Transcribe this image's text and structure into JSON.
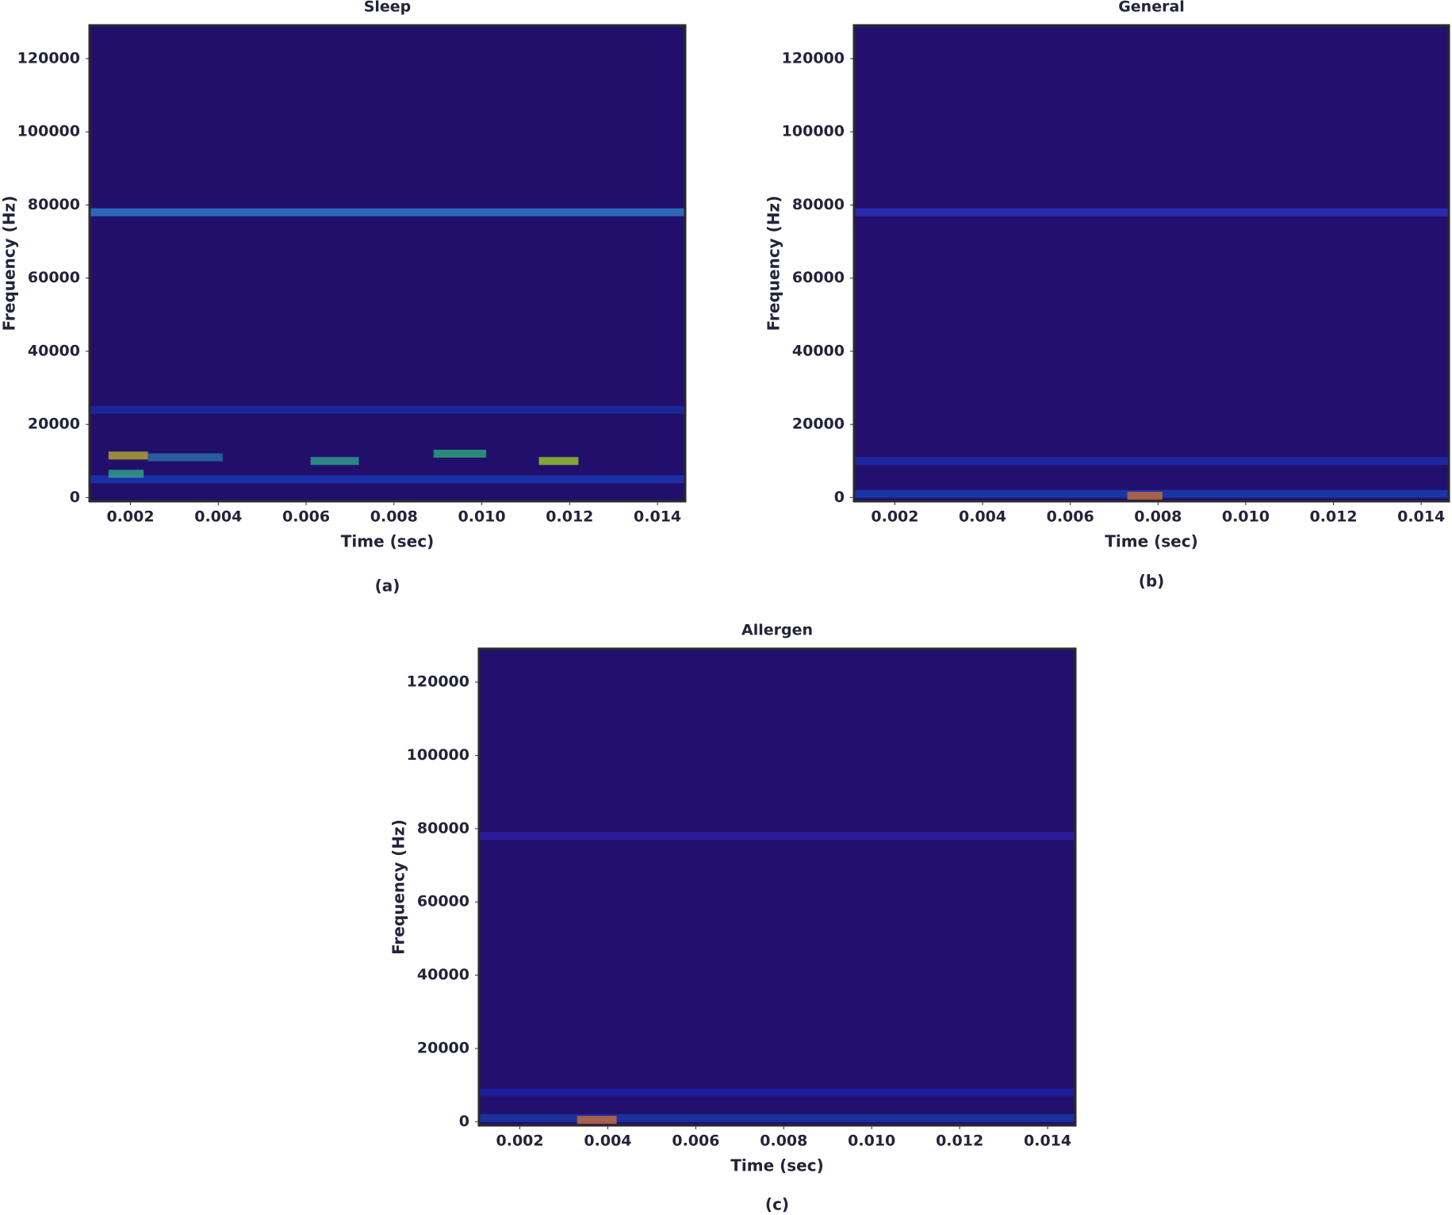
{
  "chart_data": [
    {
      "type": "spectrogram",
      "title": "Sleep",
      "caption": "(a)",
      "xlabel": "Time (sec)",
      "ylabel": "Frequency (Hz)",
      "background": "#220f6c",
      "xlim": [
        0.00107,
        0.01463
      ],
      "ylim": [
        -1000,
        129100
      ],
      "xticks": [
        0.002,
        0.004,
        0.006,
        0.008,
        {
          "value": 0.01,
          "label": "0.010"
        },
        0.012,
        0.014
      ],
      "yticks": [
        0,
        20000,
        40000,
        60000,
        80000,
        100000,
        120000
      ],
      "features": [
        {
          "t": [
            0.00107,
            0.01463
          ],
          "f": 78000,
          "color": "#2d78c8"
        },
        {
          "t": [
            0.00107,
            0.01463
          ],
          "f": 24000,
          "color": "#1a2aa0"
        },
        {
          "t": [
            0.00107,
            0.01463
          ],
          "f": 5000,
          "color": "#1a35b0"
        },
        {
          "t": [
            0.0015,
            0.0024
          ],
          "f": 11500,
          "color": "#b0a030"
        },
        {
          "t": [
            0.0024,
            0.0041
          ],
          "f": 11000,
          "color": "#2a6aa8"
        },
        {
          "t": [
            0.0015,
            0.0023
          ],
          "f": 6500,
          "color": "#2fa08a"
        },
        {
          "t": [
            0.0061,
            0.0072
          ],
          "f": 10000,
          "color": "#2f9a8a"
        },
        {
          "t": [
            0.0089,
            0.0101
          ],
          "f": 12000,
          "color": "#2aa07a"
        },
        {
          "t": [
            0.0113,
            0.0122
          ],
          "f": 10000,
          "color": "#90c030"
        }
      ]
    },
    {
      "type": "spectrogram",
      "title": "General",
      "caption": "(b)",
      "xlabel": "Time (sec)",
      "ylabel": "Frequency (Hz)",
      "background": "#230f6e",
      "xlim": [
        0.00107,
        0.01463
      ],
      "ylim": [
        -1000,
        129100
      ],
      "xticks": [
        0.002,
        0.004,
        0.006,
        0.008,
        {
          "value": 0.01,
          "label": "0.010"
        },
        0.012,
        0.014
      ],
      "yticks": [
        0,
        20000,
        40000,
        60000,
        80000,
        100000,
        120000
      ],
      "features": [
        {
          "t": [
            0.00107,
            0.01463
          ],
          "f": 78000,
          "color": "#2b2fb8"
        },
        {
          "t": [
            0.00107,
            0.01463
          ],
          "f": 10000,
          "color": "#1b2aa8"
        },
        {
          "t": [
            0.00107,
            0.01463
          ],
          "f": 1000,
          "color": "#1a3cb0"
        },
        {
          "t": [
            0.0073,
            0.0081
          ],
          "f": 500,
          "color": "#c06a40"
        }
      ]
    },
    {
      "type": "spectrogram",
      "title": "Allergen",
      "caption": "(c)",
      "xlabel": "Time (sec)",
      "ylabel": "Frequency (Hz)",
      "background": "#230f6e",
      "xlim": [
        0.00107,
        0.01463
      ],
      "ylim": [
        -1000,
        129100
      ],
      "xticks": [
        0.002,
        0.004,
        0.006,
        0.008,
        {
          "value": 0.01,
          "label": "0.010"
        },
        0.012,
        0.014
      ],
      "yticks": [
        0,
        20000,
        40000,
        60000,
        80000,
        100000,
        120000
      ],
      "features": [
        {
          "t": [
            0.00107,
            0.01463
          ],
          "f": 78000,
          "color": "#2a1fa0"
        },
        {
          "t": [
            0.00107,
            0.01463
          ],
          "f": 8000,
          "color": "#1c20a0"
        },
        {
          "t": [
            0.00107,
            0.01463
          ],
          "f": 1000,
          "color": "#1a35a8"
        },
        {
          "t": [
            0.0033,
            0.0042
          ],
          "f": 500,
          "color": "#c06a40"
        }
      ]
    }
  ]
}
